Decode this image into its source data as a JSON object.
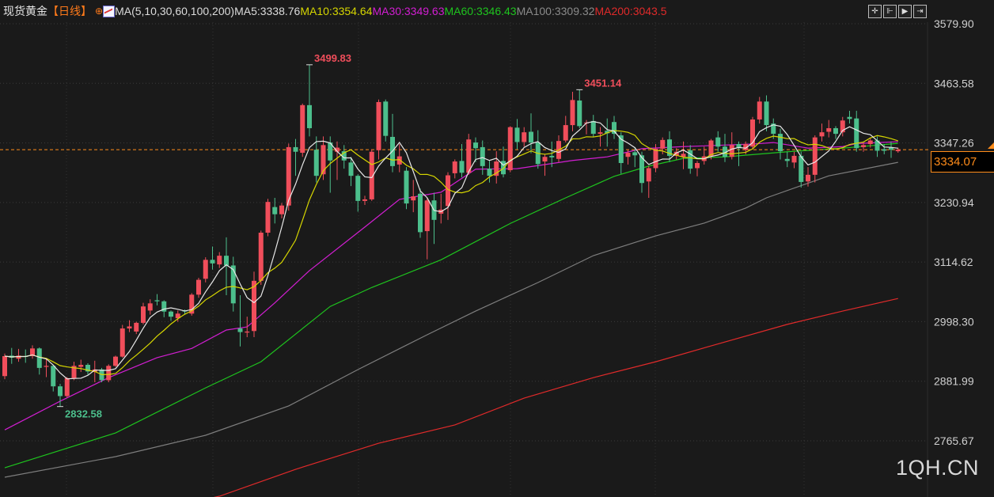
{
  "header": {
    "instrument": "现货黄金",
    "period": "【日线】",
    "crosshair_icon": "crosshair-circle-icon",
    "ma_icon": "ma-indicator-icon",
    "ma_params": "MA(5,10,30,60,100,200)",
    "ma5": "MA5:3338.76",
    "ma10": "MA10:3354.64",
    "ma30": "MA30:3349.63",
    "ma60": "MA60:3346.43",
    "ma100": "MA100:3309.32",
    "ma200": "MA200:3043.5",
    "tools": [
      "crosshair-icon",
      "zoom-start-icon",
      "play-icon",
      "exit-icon"
    ]
  },
  "watermark": "1QH.CN",
  "current_price": "3334.07",
  "colors": {
    "background": "#1a1a1a",
    "up": "#f04e5b",
    "down": "#4cbf8c",
    "ma5": "#e8e8e8",
    "ma10": "#d6d600",
    "ma30": "#d21ed2",
    "ma60": "#1ec41e",
    "ma100": "#7e7e7e",
    "ma200": "#e02a2a",
    "current_price_line": "#ff8c1a"
  },
  "chart_data": {
    "type": "candlestick",
    "title": "现货黄金",
    "period": "日线",
    "ylim": [
      2765.67,
      3579.9
    ],
    "y_ticks": [
      "3579.90",
      "3463.58",
      "3347.26",
      "3230.94",
      "3114.62",
      "2998.30",
      "2881.99",
      "2765.67"
    ],
    "grid": true,
    "annotations": [
      {
        "text": "3499.83",
        "index": 44,
        "value": 3499.83,
        "color": "#f04e5b"
      },
      {
        "text": "3451.14",
        "index": 83,
        "value": 3451.14,
        "color": "#f04e5b"
      },
      {
        "text": "2832.58",
        "index": 8,
        "value": 2832.58,
        "color": "#4cbf8c"
      }
    ],
    "candles_ohlc": [
      [
        2892,
        2936,
        2886,
        2931
      ],
      [
        2932,
        2947,
        2916,
        2928
      ],
      [
        2926,
        2945,
        2920,
        2932
      ],
      [
        2931,
        2944,
        2918,
        2930
      ],
      [
        2931,
        2952,
        2926,
        2946
      ],
      [
        2946,
        2948,
        2895,
        2908
      ],
      [
        2910,
        2925,
        2890,
        2912
      ],
      [
        2912,
        2914,
        2862,
        2872
      ],
      [
        2872,
        2877,
        2832.58,
        2853
      ],
      [
        2853,
        2890,
        2850,
        2888
      ],
      [
        2888,
        2920,
        2884,
        2912
      ],
      [
        2910,
        2924,
        2900,
        2914
      ],
      [
        2914,
        2917,
        2895,
        2901
      ],
      [
        2900,
        2922,
        2880,
        2905
      ],
      [
        2905,
        2908,
        2880,
        2884
      ],
      [
        2884,
        2915,
        2880,
        2912
      ],
      [
        2912,
        2932,
        2910,
        2930
      ],
      [
        2930,
        2992,
        2928,
        2985
      ],
      [
        2985,
        3001,
        2978,
        2989
      ],
      [
        2979,
        2998,
        2974,
        2996
      ],
      [
        2996,
        3035,
        2993,
        3028
      ],
      [
        3020,
        3042,
        3012,
        3034
      ],
      [
        3040,
        3052,
        3030,
        3038
      ],
      [
        3038,
        3040,
        3007,
        3018
      ],
      [
        3018,
        3020,
        3000,
        3008
      ],
      [
        3005,
        3020,
        2998,
        3014
      ],
      [
        3020,
        3022,
        3012,
        3018
      ],
      [
        3014,
        3054,
        3010,
        3051
      ],
      [
        3051,
        3084,
        3045,
        3080
      ],
      [
        3082,
        3124,
        3075,
        3119
      ],
      [
        3119,
        3145,
        3100,
        3112
      ],
      [
        3110,
        3134,
        3103,
        3127
      ],
      [
        3127,
        3163,
        3050,
        3108
      ],
      [
        3108,
        3125,
        3018,
        3034
      ],
      [
        2985,
        3050,
        2950,
        2978
      ],
      [
        2977,
        3008,
        2968,
        2979
      ],
      [
        2980,
        3096,
        2968,
        3078
      ],
      [
        3078,
        3176,
        3070,
        3172
      ],
      [
        3172,
        3238,
        3165,
        3232
      ],
      [
        3222,
        3240,
        3190,
        3208
      ],
      [
        3208,
        3230,
        3200,
        3225
      ],
      [
        3225,
        3346,
        3215,
        3339
      ],
      [
        3339,
        3355,
        3283,
        3330
      ],
      [
        3328,
        3424,
        3320,
        3421
      ],
      [
        3421,
        3499.83,
        3360,
        3376
      ],
      [
        3334,
        3360,
        3270,
        3283
      ],
      [
        3286,
        3360,
        3275,
        3343
      ],
      [
        3348,
        3360,
        3250,
        3313
      ],
      [
        3330,
        3350,
        3275,
        3338
      ],
      [
        3331,
        3343,
        3297,
        3313
      ],
      [
        3309,
        3320,
        3263,
        3283
      ],
      [
        3283,
        3286,
        3213,
        3234
      ],
      [
        3234,
        3244,
        3226,
        3237
      ],
      [
        3237,
        3335,
        3234,
        3330
      ],
      [
        3333,
        3432,
        3315,
        3427
      ],
      [
        3428,
        3432,
        3350,
        3361
      ],
      [
        3359,
        3404,
        3290,
        3302
      ],
      [
        3305,
        3345,
        3290,
        3321
      ],
      [
        3293,
        3300,
        3218,
        3229
      ],
      [
        3235,
        3275,
        3212,
        3243
      ],
      [
        3248,
        3258,
        3162,
        3173
      ],
      [
        3175,
        3240,
        3120,
        3235
      ],
      [
        3235,
        3250,
        3150,
        3197
      ],
      [
        3209,
        3248,
        3190,
        3217
      ],
      [
        3224,
        3290,
        3197,
        3284
      ],
      [
        3288,
        3315,
        3278,
        3311
      ],
      [
        3312,
        3345,
        3280,
        3289
      ],
      [
        3289,
        3365,
        3285,
        3354
      ],
      [
        3348,
        3358,
        3310,
        3337
      ],
      [
        3339,
        3352,
        3285,
        3302
      ],
      [
        3297,
        3312,
        3270,
        3283
      ],
      [
        3283,
        3331,
        3268,
        3311
      ],
      [
        3312,
        3340,
        3280,
        3286
      ],
      [
        3294,
        3380,
        3290,
        3378
      ],
      [
        3377,
        3394,
        3335,
        3349
      ],
      [
        3349,
        3378,
        3340,
        3368
      ],
      [
        3369,
        3405,
        3327,
        3348
      ],
      [
        3348,
        3372,
        3297,
        3306
      ],
      [
        3311,
        3325,
        3283,
        3320
      ],
      [
        3322,
        3350,
        3300,
        3319
      ],
      [
        3316,
        3362,
        3310,
        3351
      ],
      [
        3352,
        3400,
        3348,
        3382
      ],
      [
        3382,
        3447,
        3370,
        3431
      ],
      [
        3430,
        3451.14,
        3376,
        3380
      ],
      [
        3386,
        3392,
        3364,
        3387
      ],
      [
        3390,
        3402,
        3358,
        3365
      ],
      [
        3365,
        3378,
        3340,
        3368
      ],
      [
        3371,
        3395,
        3340,
        3366
      ],
      [
        3388,
        3400,
        3355,
        3365
      ],
      [
        3362,
        3368,
        3287,
        3308
      ],
      [
        3320,
        3334,
        3305,
        3328
      ],
      [
        3329,
        3339,
        3300,
        3323
      ],
      [
        3323,
        3330,
        3250,
        3269
      ],
      [
        3272,
        3302,
        3240,
        3298
      ],
      [
        3298,
        3345,
        3290,
        3336
      ],
      [
        3336,
        3358,
        3325,
        3353
      ],
      [
        3354,
        3370,
        3310,
        3322
      ],
      [
        3322,
        3337,
        3315,
        3330
      ],
      [
        3320,
        3350,
        3296,
        3326
      ],
      [
        3333,
        3343,
        3287,
        3297
      ],
      [
        3298,
        3312,
        3282,
        3308
      ],
      [
        3312,
        3340,
        3305,
        3321
      ],
      [
        3322,
        3355,
        3315,
        3352
      ],
      [
        3358,
        3370,
        3330,
        3340
      ],
      [
        3340,
        3365,
        3310,
        3320
      ],
      [
        3320,
        3368,
        3315,
        3343
      ],
      [
        3345,
        3350,
        3302,
        3337
      ],
      [
        3333,
        3350,
        3325,
        3345
      ],
      [
        3340,
        3398,
        3335,
        3393
      ],
      [
        3393,
        3437,
        3385,
        3428
      ],
      [
        3428,
        3440,
        3370,
        3382
      ],
      [
        3385,
        3395,
        3355,
        3365
      ],
      [
        3365,
        3375,
        3315,
        3331
      ],
      [
        3316,
        3330,
        3300,
        3312
      ],
      [
        3309,
        3330,
        3298,
        3322
      ],
      [
        3322,
        3330,
        3260,
        3271
      ],
      [
        3272,
        3300,
        3262,
        3285
      ],
      [
        3285,
        3362,
        3270,
        3358
      ],
      [
        3360,
        3385,
        3350,
        3368
      ],
      [
        3369,
        3392,
        3358,
        3376
      ],
      [
        3376,
        3380,
        3355,
        3365
      ],
      [
        3368,
        3398,
        3360,
        3391
      ],
      [
        3398,
        3410,
        3385,
        3394
      ],
      [
        3395,
        3410,
        3330,
        3337
      ],
      [
        3339,
        3350,
        3330,
        3343
      ],
      [
        3345,
        3358,
        3338,
        3352
      ],
      [
        3352,
        3360,
        3320,
        3332
      ],
      [
        3335,
        3345,
        3325,
        3332
      ],
      [
        3338,
        3350,
        3318,
        3334
      ],
      [
        3331,
        3338,
        3328,
        3334.07
      ]
    ],
    "moving_averages": {
      "ma30": [
        [
          0,
          2787
        ],
        [
          8,
          2843
        ],
        [
          15,
          2889
        ],
        [
          22,
          2928
        ],
        [
          27,
          2946
        ],
        [
          32,
          2982
        ],
        [
          35,
          2988
        ],
        [
          39,
          3035
        ],
        [
          44,
          3098
        ],
        [
          52,
          3183
        ],
        [
          57,
          3237
        ],
        [
          63,
          3251
        ],
        [
          68,
          3296
        ],
        [
          74,
          3297
        ],
        [
          82,
          3313
        ],
        [
          87,
          3320
        ],
        [
          92,
          3336
        ],
        [
          98,
          3340
        ],
        [
          108,
          3345
        ],
        [
          111,
          3348
        ],
        [
          116,
          3337
        ],
        [
          121,
          3340
        ],
        [
          123,
          3346
        ],
        [
          129,
          3349.63
        ]
      ],
      "ma60": [
        [
          0,
          2713
        ],
        [
          16,
          2781
        ],
        [
          29,
          2869
        ],
        [
          37,
          2920
        ],
        [
          47,
          3028
        ],
        [
          53,
          3065
        ],
        [
          63,
          3119
        ],
        [
          73,
          3190
        ],
        [
          81,
          3240
        ],
        [
          88,
          3282
        ],
        [
          93,
          3302
        ],
        [
          98,
          3317
        ],
        [
          104,
          3320
        ],
        [
          113,
          3330
        ],
        [
          121,
          3337
        ],
        [
          129,
          3346.43
        ]
      ],
      "ma100": [
        [
          0,
          2694.6
        ],
        [
          16,
          2734.8
        ],
        [
          29,
          2776.5
        ],
        [
          41,
          2833.7
        ],
        [
          51,
          2904.7
        ],
        [
          61,
          2972.7
        ],
        [
          68,
          3019
        ],
        [
          77,
          3074.7
        ],
        [
          85,
          3127.2
        ],
        [
          94,
          3165.8
        ],
        [
          101,
          3190.6
        ],
        [
          107,
          3220
        ],
        [
          110,
          3240
        ],
        [
          119,
          3283
        ],
        [
          129,
          3309.32
        ]
      ],
      "ma200": [
        [
          25,
          2640
        ],
        [
          31,
          2657.5
        ],
        [
          42,
          2710
        ],
        [
          54,
          2761
        ],
        [
          65,
          2796.6
        ],
        [
          75,
          2849
        ],
        [
          85,
          2889
        ],
        [
          94,
          2920
        ],
        [
          102,
          2951
        ],
        [
          113,
          2993
        ],
        [
          121,
          3019
        ],
        [
          129,
          3043.5
        ]
      ]
    }
  }
}
